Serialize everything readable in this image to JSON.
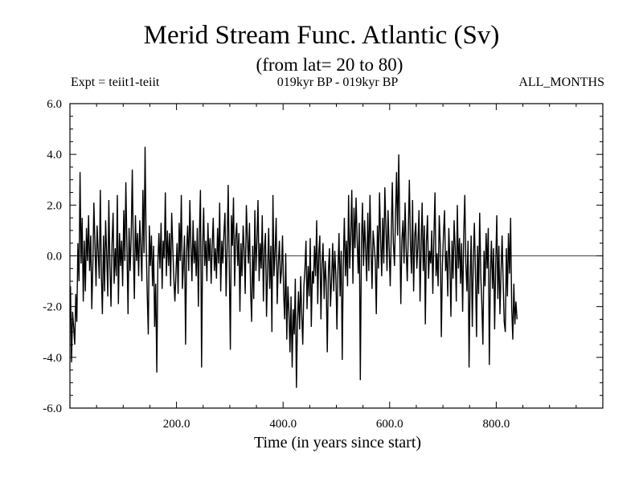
{
  "chart_data": {
    "type": "line",
    "title": "Merid Stream Func. Atlantic (Sv)",
    "subtitle": "(from lat= 20 to 80)",
    "header_left": "Expt = teiit1-teiit",
    "header_center": "019kyr BP - 019kyr BP",
    "header_right": "ALL_MONTHS",
    "xlabel": "Time (in years since start)",
    "ylabel": "",
    "xlim": [
      0,
      1000
    ],
    "ylim": [
      -6.0,
      6.0
    ],
    "xticks": [
      200,
      400,
      600,
      800
    ],
    "xtick_labels": [
      "200.0",
      "400.0",
      "600.0",
      "800.0"
    ],
    "yticks": [
      -6,
      -4,
      -2,
      0,
      2,
      4,
      6
    ],
    "ytick_labels": [
      "-6.0",
      "-4.0",
      "-2.0",
      "0.0",
      "2.0",
      "4.0",
      "6.0"
    ],
    "zero_line": true,
    "series": [
      {
        "color": "#000000",
        "x_start": 1,
        "x_step": 2,
        "values": [
          -1.2,
          -4.2,
          -2.2,
          -2.8,
          -3.5,
          -1.5,
          -2.6,
          0.5,
          -1.0,
          3.3,
          -0.3,
          1.5,
          -1.8,
          0.6,
          -1.4,
          1.1,
          -0.2,
          1.6,
          -0.6,
          0.8,
          -2.1,
          -0.4,
          2.1,
          0.4,
          -1.2,
          1.2,
          0.2,
          -0.9,
          2.6,
          -0.7,
          -2.3,
          0.8,
          -1.4,
          1.4,
          0.1,
          -1.6,
          2.2,
          -0.3,
          -2.0,
          0.5,
          1.7,
          -1.1,
          0.3,
          -0.8,
          2.4,
          -1.9,
          0.9,
          -0.4,
          0.6,
          -1.2,
          1.8,
          -0.2,
          2.9,
          0.4,
          -2.3,
          1.1,
          -0.6,
          0.7,
          3.4,
          0.2,
          -1.7,
          1.6,
          -0.2,
          0.9,
          -0.8,
          1.4,
          0.3,
          -1.0,
          2.6,
          0.1,
          4.3,
          0.6,
          -1.4,
          -3.1,
          1.2,
          -0.4,
          0.8,
          -1.2,
          0.4,
          -2.8,
          -1.1,
          -4.6,
          -0.3,
          0.9,
          -0.5,
          1.3,
          -1.3,
          0.6,
          -0.1,
          2.5,
          -0.8,
          1.0,
          -0.4,
          0.9,
          -1.2,
          1.7,
          0.3,
          -0.9,
          -1.8,
          -0.7,
          0.5,
          -1.5,
          1.3,
          -0.2,
          2.4,
          -1.3,
          -0.4,
          0.8,
          -3.5,
          0.2,
          1.2,
          -0.6,
          2.2,
          0.4,
          -1.0,
          1.4,
          -0.3,
          0.6,
          -0.8,
          1.1,
          -2.0,
          0.9,
          2.6,
          -4.4,
          0.3,
          1.9,
          -0.4,
          0.6,
          -1.0,
          1.3,
          -0.2,
          0.7,
          -1.1,
          0.4,
          1.5,
          -0.6,
          0.3,
          -0.9,
          1.1,
          -0.3,
          2.1,
          -1.4,
          0.6,
          -0.3,
          0.9,
          1.7,
          -1.6,
          0.3,
          2.8,
          -0.3,
          -3.7,
          1.6,
          0.4,
          2.3,
          -1.2,
          0.7,
          1.3,
          -0.4,
          0.9,
          -2.2,
          0.5,
          -0.8,
          1.2,
          0.2,
          -1.5,
          2.0,
          0.7,
          -0.3,
          1.3,
          -1.4,
          -2.6,
          0.4,
          -1.7,
          1.8,
          -0.6,
          0.6,
          2.2,
          -1.0,
          0.5,
          -0.5,
          1.6,
          -1.8,
          0.3,
          0.9,
          -2.4,
          -0.5,
          1.1,
          -1.3,
          0.4,
          -3.0,
          2.4,
          -0.8,
          0.2,
          1.5,
          -1.9,
          -0.4,
          0.6,
          -1.1,
          -0.6,
          0.8,
          -1.5,
          -2.5,
          0.1,
          -3.3,
          -1.2,
          -2.2,
          -3.8,
          -1.6,
          -4.4,
          -2.1,
          -3.1,
          -0.9,
          -5.2,
          -2.6,
          -1.4,
          -2.9,
          -0.8,
          -2.3,
          -3.5,
          -1.2,
          -0.5,
          0.6,
          -2.1,
          -0.4,
          -1.6,
          0.7,
          -2.8,
          -0.6,
          -1.1,
          0.4,
          -0.8,
          1.4,
          -1.9,
          0.1,
          0.8,
          -2.5,
          -0.3,
          0.5,
          -1.7,
          -0.2,
          -1.1,
          -3.8,
          -0.6,
          0.3,
          -2.0,
          -1.0,
          0.5,
          -1.4,
          0.2,
          -0.7,
          -2.9,
          -0.5,
          0.9,
          -1.6,
          0.2,
          -4.1,
          -0.4,
          1.5,
          -0.8,
          0.6,
          -1.2,
          2.4,
          -0.5,
          0.8,
          2.6,
          -1.1,
          1.9,
          0.3,
          2.3,
          0.6,
          -0.7,
          1.3,
          -4.9,
          0.5,
          2.1,
          -0.4,
          1.4,
          0.2,
          -1.0,
          1.7,
          -0.6,
          2.4,
          0.3,
          -1.3,
          1.0,
          0.4,
          -0.2,
          -2.3,
          1.2,
          -0.5,
          2.5,
          0.7,
          -0.8,
          1.5,
          -0.3,
          2.7,
          1.1,
          -0.6,
          1.8,
          0.4,
          -1.2,
          0.9,
          2.9,
          0.5,
          -0.4,
          1.6,
          3.3,
          0.8,
          4.0,
          1.0,
          -1.9,
          0.6,
          1.4,
          -0.3,
          2.1,
          0.2,
          -1.0,
          0.9,
          3.0,
          0.4,
          -0.7,
          2.2,
          -1.4,
          0.8,
          1.3,
          -0.5,
          0.4,
          1.8,
          -1.8,
          0.3,
          2.1,
          -0.6,
          1.2,
          -2.7,
          0.5,
          1.6,
          -0.9,
          0.2,
          -0.3,
          1.0,
          -1.5,
          0.7,
          2.5,
          -0.8,
          0.1,
          -1.2,
          1.6,
          0.4,
          -3.2,
          -0.4,
          0.9,
          1.8,
          -0.6,
          0.2,
          -1.6,
          1.1,
          -0.2,
          -2.4,
          0.6,
          -0.9,
          1.4,
          0.3,
          -1.8,
          2.0,
          -0.5,
          0.7,
          -1.1,
          0.5,
          -2.2,
          0.9,
          2.4,
          -0.3,
          -1.4,
          0.6,
          -4.4,
          -1.0,
          0.8,
          -2.8,
          -0.2,
          1.3,
          -0.6,
          -3.2,
          0.4,
          -1.5,
          1.7,
          -0.8,
          -1.9,
          -3.5,
          0.2,
          -1.2,
          0.9,
          -0.5,
          1.1,
          -4.3,
          -0.8,
          0.6,
          -1.3,
          0.3,
          -2.9,
          -0.4,
          1.6,
          -1.7,
          0.4,
          -2.3,
          -0.6,
          0.8,
          -1.0,
          -2.6,
          -3.0,
          0.3,
          -1.6,
          0.9,
          -0.7,
          1.5,
          -2.0,
          -3.3,
          -1.1,
          -2.7,
          -1.8,
          -2.5
        ]
      }
    ]
  }
}
